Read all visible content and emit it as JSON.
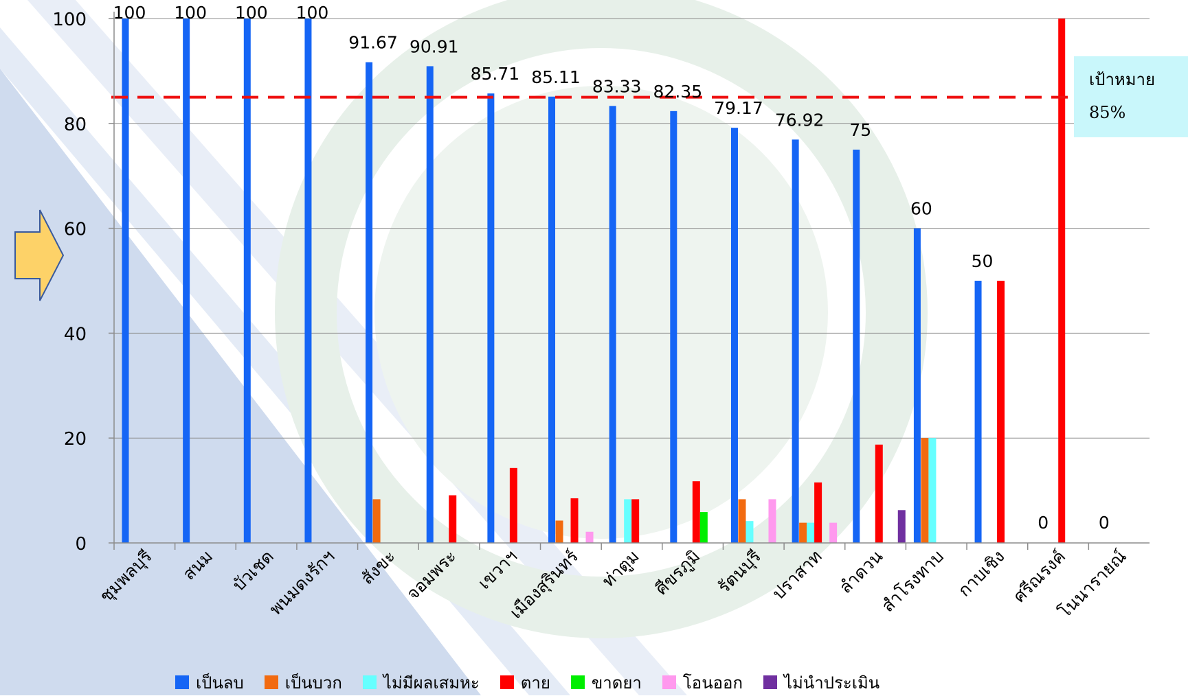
{
  "colors": {
    "negative": "#1565f5",
    "positive": "#f26a10",
    "no_sputum": "#66ffff",
    "died": "#ff0000",
    "defaulted": "#00ee00",
    "transferred": "#ff99ee",
    "not_evaluated": "#7030a0",
    "target_line": "#ee1111"
  },
  "target": {
    "title": "เป้าหมาย",
    "value_label": "85%",
    "value": 85
  },
  "legend": [
    {
      "key": "negative",
      "label": "เป็นลบ",
      "color": "#1565f5"
    },
    {
      "key": "positive",
      "label": "เป็นบวก",
      "color": "#f26a10"
    },
    {
      "key": "no_sputum",
      "label": "ไม่มีผลเสมหะ",
      "color": "#66ffff"
    },
    {
      "key": "died",
      "label": "ตาย",
      "color": "#ff0000"
    },
    {
      "key": "defaulted",
      "label": "ขาดยา",
      "color": "#00ee00"
    },
    {
      "key": "transferred",
      "label": "โอนออก",
      "color": "#ff99ee"
    },
    {
      "key": "not_evaluated",
      "label": "ไม่นำประเมิน",
      "color": "#7030a0"
    }
  ],
  "chart_data": {
    "type": "bar",
    "ylim": [
      0,
      100
    ],
    "yticks": [
      0,
      20,
      40,
      60,
      80,
      100
    ],
    "grid": true,
    "legend_position": "bottom",
    "target_line": 85,
    "categories": [
      "ชุมพลบุรี",
      "สนม",
      "บัวเชด",
      "พนมดงรักฯ",
      "สังขะ",
      "จอมพระ",
      "เขวาฯ",
      "เมืองสุรินทร์",
      "ท่าตูม",
      "ศีขรภูมิ",
      "รัตนบุรี",
      "ปราสาท",
      "ลำดวน",
      "สำโรงทาบ",
      "กาบเชิง",
      "ศรีณรงค์",
      "โนนารายณ์"
    ],
    "value_labels": [
      "100",
      "100",
      "100",
      "100",
      "91.67",
      "90.91",
      "85.71",
      "85.11",
      "83.33",
      "82.35",
      "79.17",
      "76.92",
      "75",
      "60",
      "50",
      "0",
      "0"
    ],
    "series": [
      {
        "key": "negative",
        "name": "เป็นลบ",
        "values": [
          100,
          100,
          100,
          100,
          91.67,
          90.91,
          85.71,
          85.11,
          83.33,
          82.35,
          79.17,
          76.92,
          75,
          60,
          50,
          0,
          0
        ]
      },
      {
        "key": "positive",
        "name": "เป็นบวก",
        "values": [
          0,
          0,
          0,
          0,
          8.33,
          0,
          0,
          4.26,
          0,
          0,
          8.33,
          3.85,
          0,
          20,
          0,
          0,
          0
        ]
      },
      {
        "key": "no_sputum",
        "name": "ไม่มีผลเสมหะ",
        "values": [
          0,
          0,
          0,
          0,
          0,
          0,
          0,
          0,
          8.33,
          0,
          4.17,
          3.85,
          0,
          20,
          0,
          0,
          0
        ]
      },
      {
        "key": "died",
        "name": "ตาย",
        "values": [
          0,
          0,
          0,
          0,
          0,
          9.09,
          14.29,
          8.51,
          8.33,
          11.76,
          0,
          11.54,
          18.75,
          0,
          50,
          100,
          0
        ]
      },
      {
        "key": "defaulted",
        "name": "ขาดยา",
        "values": [
          0,
          0,
          0,
          0,
          0,
          0,
          0,
          0,
          0,
          5.88,
          0,
          0,
          0,
          0,
          0,
          0,
          0
        ]
      },
      {
        "key": "transferred",
        "name": "โอนออก",
        "values": [
          0,
          0,
          0,
          0,
          0,
          0,
          0,
          2.13,
          0,
          0,
          8.33,
          3.85,
          0,
          0,
          0,
          0,
          0
        ]
      },
      {
        "key": "not_evaluated",
        "name": "ไม่นำประเมิน",
        "values": [
          0,
          0,
          0,
          0,
          0,
          0,
          0,
          0,
          0,
          0,
          0,
          0,
          6.25,
          0,
          0,
          0,
          0
        ]
      }
    ]
  }
}
